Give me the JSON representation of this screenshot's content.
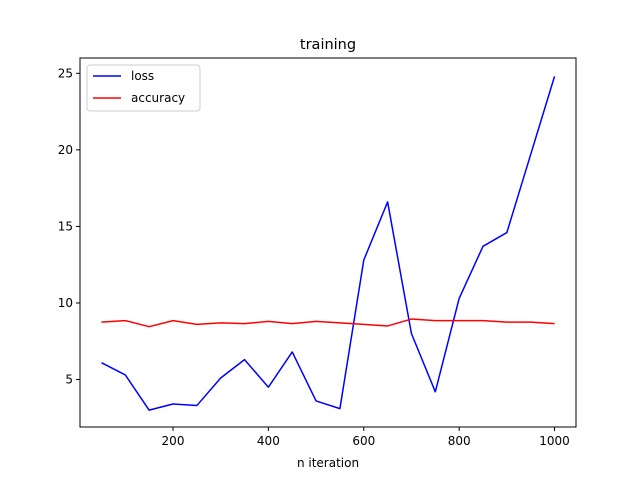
{
  "chart_data": {
    "type": "line",
    "title": "training",
    "xlabel": "n iteration",
    "ylabel": "",
    "xlim": [
      5,
      1045
    ],
    "ylim": [
      1.9,
      26.0
    ],
    "xticks": [
      200,
      400,
      600,
      800,
      1000
    ],
    "yticks": [
      5,
      10,
      15,
      20,
      25
    ],
    "grid": false,
    "legend": "top-left",
    "x": [
      50,
      100,
      150,
      200,
      250,
      300,
      350,
      400,
      450,
      500,
      550,
      600,
      650,
      700,
      750,
      800,
      850,
      900,
      950,
      1000
    ],
    "series": [
      {
        "name": "loss",
        "color": "#0000ff",
        "values": [
          6.1,
          5.3,
          3.0,
          3.4,
          3.3,
          5.1,
          6.3,
          4.5,
          6.8,
          3.6,
          3.1,
          12.8,
          16.6,
          8.0,
          4.2,
          10.3,
          13.7,
          14.6,
          19.7,
          24.8
        ]
      },
      {
        "name": "accuracy",
        "color": "#ff0000",
        "values": [
          8.75,
          8.85,
          8.45,
          8.85,
          8.6,
          8.7,
          8.65,
          8.8,
          8.65,
          8.8,
          8.7,
          8.6,
          8.5,
          8.95,
          8.85,
          8.85,
          8.85,
          8.75,
          8.75,
          8.65
        ]
      }
    ]
  }
}
